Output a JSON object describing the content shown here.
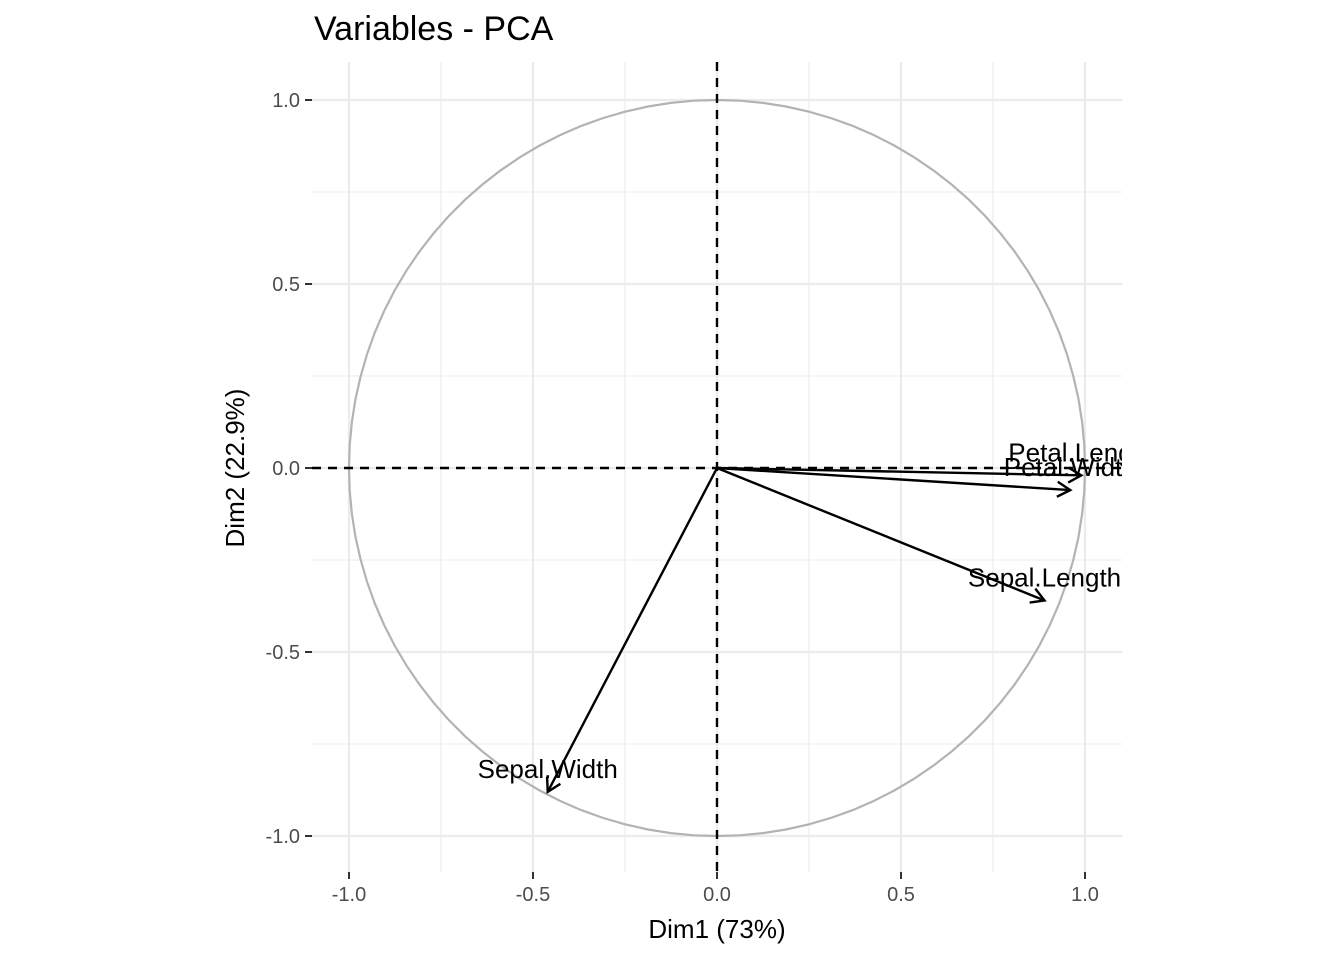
{
  "chart_data": {
    "type": "scatter",
    "title": "Variables - PCA",
    "xlabel": "Dim1 (73%)",
    "ylabel": "Dim2 (22.9%)",
    "xlim": [
      -1.1,
      1.1
    ],
    "ylim": [
      -1.1,
      1.1
    ],
    "x_ticks": [
      -1.0,
      -0.5,
      0.0,
      0.5,
      1.0
    ],
    "y_ticks": [
      -1.0,
      -0.5,
      0.0,
      0.5,
      1.0
    ],
    "x_tick_labels": [
      "-1.0",
      "-0.5",
      "0.0",
      "0.5",
      "1.0"
    ],
    "y_tick_labels": [
      "-1.0",
      "-0.5",
      "0.0",
      "0.5",
      "1.0"
    ],
    "grid": true,
    "correlation_circle": true,
    "zero_lines": "dashed",
    "variables": [
      {
        "name": "Sepal.Length",
        "x": 0.89,
        "y": -0.36
      },
      {
        "name": "Sepal.Width",
        "x": -0.46,
        "y": -0.88
      },
      {
        "name": "Petal.Length",
        "x": 0.99,
        "y": -0.02
      },
      {
        "name": "Petal.Width",
        "x": 0.96,
        "y": -0.06
      }
    ],
    "colors": {
      "arrows": "#000000",
      "circle": "#b3b3b3",
      "grid": "#ebebeb",
      "tick_labels": "#4d4d4d"
    }
  }
}
